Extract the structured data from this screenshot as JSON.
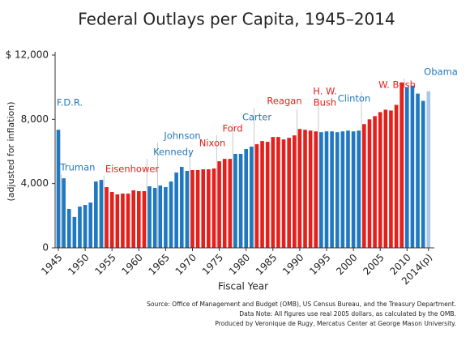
{
  "chart_data": {
    "type": "bar",
    "title": "Federal Outlays per Capita, 1945–2014",
    "y_label": "(adjusted for inflation)",
    "x_label": "Fiscal Year",
    "categories": [
      1945,
      null,
      null,
      null,
      null,
      1950,
      null,
      null,
      null,
      null,
      1955,
      null,
      null,
      null,
      null,
      1960,
      null,
      null,
      null,
      null,
      1965,
      null,
      null,
      null,
      null,
      1970,
      null,
      null,
      null,
      null,
      1975,
      null,
      null,
      null,
      null,
      1980,
      null,
      null,
      null,
      null,
      1985,
      null,
      null,
      null,
      null,
      1990,
      null,
      null,
      null,
      null,
      1995,
      null,
      null,
      null,
      null,
      2000,
      null,
      null,
      null,
      null,
      2005,
      null,
      null,
      null,
      null,
      2010,
      null,
      null,
      null,
      "2014(p)"
    ],
    "values": [
      7350,
      4330,
      2420,
      1920,
      2570,
      2670,
      2820,
      4130,
      4230,
      3780,
      3480,
      3330,
      3380,
      3380,
      3580,
      3530,
      3530,
      3830,
      3730,
      3880,
      3780,
      4130,
      4690,
      5040,
      4790,
      4840,
      4840,
      4890,
      4890,
      4940,
      5390,
      5540,
      5540,
      5850,
      5850,
      6150,
      6300,
      6450,
      6650,
      6600,
      6900,
      6900,
      6750,
      6850,
      7000,
      7400,
      7350,
      7300,
      7250,
      7200,
      7250,
      7250,
      7200,
      7250,
      7300,
      7250,
      7300,
      7700,
      8000,
      8200,
      8450,
      8600,
      8550,
      8900,
      10300,
      10000,
      10100,
      9600,
      9150,
      9750
    ],
    "colors": [
      "#1f78c1",
      "#1f78c1",
      "#1f78c1",
      "#1f78c1",
      "#1f78c1",
      "#1f78c1",
      "#1f78c1",
      "#1f78c1",
      "#1f78c1",
      "#e3201b",
      "#e3201b",
      "#e3201b",
      "#e3201b",
      "#e3201b",
      "#e3201b",
      "#e3201b",
      "#e3201b",
      "#1f78c1",
      "#1f78c1",
      "#1f78c1",
      "#1f78c1",
      "#1f78c1",
      "#1f78c1",
      "#1f78c1",
      "#1f78c1",
      "#e3201b",
      "#e3201b",
      "#e3201b",
      "#e3201b",
      "#e3201b",
      "#e3201b",
      "#e3201b",
      "#e3201b",
      "#1f78c1",
      "#1f78c1",
      "#1f78c1",
      "#1f78c1",
      "#e3201b",
      "#e3201b",
      "#e3201b",
      "#e3201b",
      "#e3201b",
      "#e3201b",
      "#e3201b",
      "#e3201b",
      "#e3201b",
      "#e3201b",
      "#e3201b",
      "#e3201b",
      "#1f78c1",
      "#1f78c1",
      "#1f78c1",
      "#1f78c1",
      "#1f78c1",
      "#1f78c1",
      "#1f78c1",
      "#1f78c1",
      "#e3201b",
      "#e3201b",
      "#e3201b",
      "#e3201b",
      "#e3201b",
      "#e3201b",
      "#e3201b",
      "#e3201b",
      "#1f78c1",
      "#1f78c1",
      "#1f78c1",
      "#1f78c1",
      "#a9c9e8"
    ],
    "ylim": [
      0,
      12000
    ],
    "yticks": [
      0,
      {
        "value": 4000,
        "label": "4,000"
      },
      {
        "value": 8000,
        "label": "8,000"
      },
      {
        "value": 12000,
        "label": "$ 12,000"
      }
    ],
    "annotations": [
      {
        "text": "F.D.R.",
        "color": "#1f78c1"
      },
      {
        "text": "Truman",
        "color": "#1f78c1"
      },
      {
        "text": "Eisenhower",
        "color": "#e3201b"
      },
      {
        "text": "Kennedy",
        "color": "#1f78c1"
      },
      {
        "text": "Johnson",
        "color": "#1f78c1"
      },
      {
        "text": "Nixon",
        "color": "#e3201b"
      },
      {
        "text": "Ford",
        "color": "#e3201b"
      },
      {
        "text": "Carter",
        "color": "#1f78c1"
      },
      {
        "text": "Reagan",
        "color": "#e3201b"
      },
      {
        "text": "H. W.",
        "color": "#e3201b"
      },
      {
        "text": "Bush",
        "color": "#e3201b"
      },
      {
        "text": "Clinton",
        "color": "#1f78c1"
      },
      {
        "text": "W. Bush",
        "color": "#e3201b"
      },
      {
        "text": "Obama",
        "color": "#1f78c1"
      }
    ],
    "source": [
      "Source: Office of Management and Budget (OMB), US Census Bureau, and the Treasury Department.",
      "Data Note: All figures use real 2005 dollars, as calculated by the OMB.",
      "Produced by Veronique de Rugy, Mercatus Center at George Mason University."
    ]
  }
}
